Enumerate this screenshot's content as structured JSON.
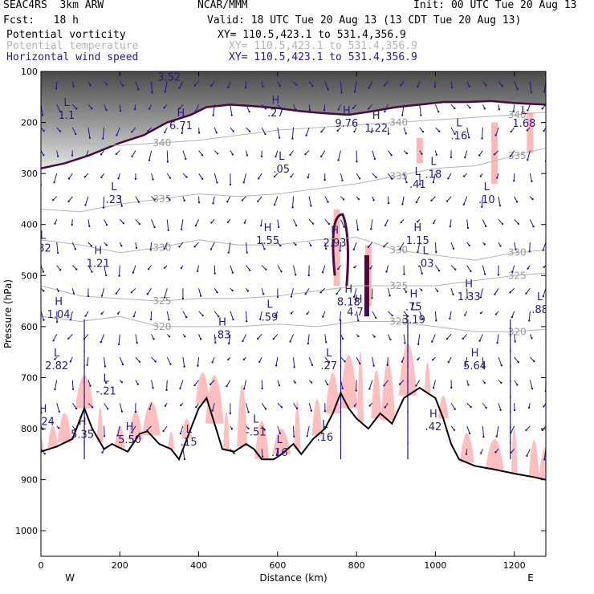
{
  "header": {
    "model": "SEAC4RS  3km ARW",
    "center": "NCAR/MMM",
    "init": "Init: 00 UTC Tue 20 Aug 13",
    "fcst": "Fcst:   18 h",
    "valid": "Valid: 18 UTC Tue 20 Aug 13 (13 CDT Tue 20 Aug 13)"
  },
  "fields": [
    {
      "label": "Potential vorticity",
      "color": "#000000"
    },
    {
      "label": "Potential temperature",
      "color": "#b4b4b4"
    },
    {
      "label": "Horizontal wind speed",
      "color": "#2a1a8a"
    }
  ],
  "cross_section": {
    "pv": "XY= 110.5,423.1 to 531.4,356.9",
    "theta": "XY= 110.5,423.1 to 531.4,356.9",
    "wind": "XY= 110.5,423.1 to 531.4,356.9"
  },
  "colors": {
    "pv_contour": "#4a0a3a",
    "shading": "#ffb8b8",
    "wind_vector": "#1a1a8a",
    "theta": "#b4b4b4",
    "terrain": "#000000"
  },
  "chart_data": {
    "type": "cross-section",
    "xlabel": "Distance (km)",
    "ylabel": "Pressure (hPa)",
    "xlim": [
      0,
      1280
    ],
    "ylim": [
      1050,
      100
    ],
    "x_ticks": [
      "0",
      "200",
      "400",
      "600",
      "800",
      "1000",
      "1200"
    ],
    "y_ticks": [
      "100",
      "200",
      "300",
      "400",
      "500",
      "600",
      "700",
      "800",
      "900",
      "1000"
    ],
    "left_end": "W",
    "right_end": "E",
    "terrain_surface": {
      "x": [
        0,
        40,
        80,
        110,
        130,
        160,
        180,
        220,
        250,
        270,
        300,
        330,
        350,
        380,
        400,
        420,
        440,
        460,
        490,
        520,
        540,
        560,
        590,
        610,
        640,
        660,
        690,
        720,
        740,
        760,
        780,
        800,
        830,
        860,
        890,
        920,
        960,
        1000,
        1020,
        1040,
        1060,
        1100,
        1150,
        1200,
        1250,
        1280
      ],
      "p": [
        845,
        835,
        820,
        760,
        800,
        840,
        830,
        845,
        810,
        805,
        830,
        840,
        860,
        800,
        760,
        740,
        790,
        840,
        845,
        830,
        840,
        860,
        860,
        850,
        830,
        850,
        820,
        800,
        770,
        730,
        760,
        780,
        800,
        770,
        790,
        740,
        720,
        740,
        780,
        830,
        860,
        873,
        880,
        888,
        895,
        900
      ]
    },
    "theta_contours": [
      {
        "label": "340",
        "p": [
          230,
          240,
          245,
          240,
          235,
          225,
          215,
          210,
          205,
          200,
          195,
          190,
          185,
          180
        ]
      },
      {
        "label": "335",
        "p": [
          370,
          375,
          360,
          350,
          340,
          345,
          340,
          330,
          320,
          305,
          290,
          285,
          265,
          250
        ]
      },
      {
        "label": "330",
        "p": [
          430,
          440,
          455,
          445,
          430,
          440,
          440,
          430,
          425,
          450,
          460,
          470,
          455,
          450
        ]
      },
      {
        "label": "325",
        "p": [
          520,
          540,
          545,
          550,
          545,
          545,
          540,
          530,
          520,
          520,
          520,
          510,
          500,
          495
        ]
      },
      {
        "label": "320",
        "p": [
          580,
          590,
          580,
          600,
          600,
          600,
          595,
          600,
          590,
          590,
          600,
          610,
          610,
          605
        ]
      }
    ],
    "theta_x": [
      0,
      100,
      200,
      300,
      400,
      500,
      600,
      700,
      800,
      900,
      1000,
      1100,
      1200,
      1280
    ],
    "extrema": [
      {
        "kind": "L",
        "value": "1.1",
        "x": 65,
        "p": 190
      },
      {
        "kind": "H",
        "value": "3.52",
        "x": 325,
        "p": 115
      },
      {
        "kind": "H",
        "value": "6.71",
        "x": 355,
        "p": 210
      },
      {
        "kind": "H",
        "value": ".27",
        "x": 595,
        "p": 185
      },
      {
        "kind": "H",
        "value": "9.76",
        "x": 775,
        "p": 205
      },
      {
        "kind": "H",
        "value": "1.22",
        "x": 850,
        "p": 215
      },
      {
        "kind": "L",
        "value": ".16",
        "x": 1060,
        "p": 230
      },
      {
        "kind": "L",
        "value": "1.68",
        "x": 1225,
        "p": 205
      },
      {
        "kind": "L",
        "value": ".05",
        "x": 610,
        "p": 295
      },
      {
        "kind": "L",
        "value": ".18",
        "x": 995,
        "p": 305
      },
      {
        "kind": "L",
        "value": ".41",
        "x": 955,
        "p": 325
      },
      {
        "kind": "L",
        "value": ".10",
        "x": 1130,
        "p": 355
      },
      {
        "kind": "L",
        "value": ".23",
        "x": 185,
        "p": 355
      },
      {
        "kind": "H",
        "value": "1.55",
        "x": 575,
        "p": 435
      },
      {
        "kind": "H",
        "value": "2.93",
        "x": 745,
        "p": 440
      },
      {
        "kind": "H",
        "value": "1.15",
        "x": 955,
        "p": 435
      },
      {
        "kind": "L",
        "value": ".32",
        "x": 5,
        "p": 450
      },
      {
        "kind": "H",
        "value": "1.21",
        "x": 145,
        "p": 480
      },
      {
        "kind": "L",
        "value": ".03",
        "x": 975,
        "p": 480
      },
      {
        "kind": "H",
        "value": "8.18",
        "x": 780,
        "p": 555
      },
      {
        "kind": "H",
        "value": "4.72",
        "x": 805,
        "p": 575
      },
      {
        "kind": "H",
        "value": "1.33",
        "x": 1085,
        "p": 545
      },
      {
        "kind": "L",
        "value": ".88",
        "x": 1265,
        "p": 570
      },
      {
        "kind": "H",
        "value": "1.04",
        "x": 45,
        "p": 580
      },
      {
        "kind": "L",
        "value": ".59",
        "x": 580,
        "p": 585
      },
      {
        "kind": "H",
        "value": ".75",
        "x": 945,
        "p": 565
      },
      {
        "kind": "L",
        "value": "3.19",
        "x": 945,
        "p": 590
      },
      {
        "kind": "H",
        "value": ".83",
        "x": 460,
        "p": 620
      },
      {
        "kind": "L",
        "value": "2.82",
        "x": 40,
        "p": 680
      },
      {
        "kind": "L",
        "value": ".27",
        "x": 730,
        "p": 680
      },
      {
        "kind": "H",
        "value": "5.64",
        "x": 1100,
        "p": 680
      },
      {
        "kind": "L",
        "value": "-.21",
        "x": 165,
        "p": 730
      },
      {
        "kind": "H",
        "value": "1.24",
        "x": 5,
        "p": 790
      },
      {
        "kind": "H",
        "value": "5.35",
        "x": 105,
        "p": 815
      },
      {
        "kind": "H",
        "value": "5.50",
        "x": 225,
        "p": 825
      },
      {
        "kind": "L",
        "value": ".15",
        "x": 375,
        "p": 830
      },
      {
        "kind": "L",
        "value": "-.51",
        "x": 545,
        "p": 810
      },
      {
        "kind": "L",
        "value": ".16",
        "x": 720,
        "p": 820
      },
      {
        "kind": "H",
        "value": ".42",
        "x": 995,
        "p": 800
      },
      {
        "kind": "L",
        "value": ".16",
        "x": 605,
        "p": 850
      }
    ]
  }
}
